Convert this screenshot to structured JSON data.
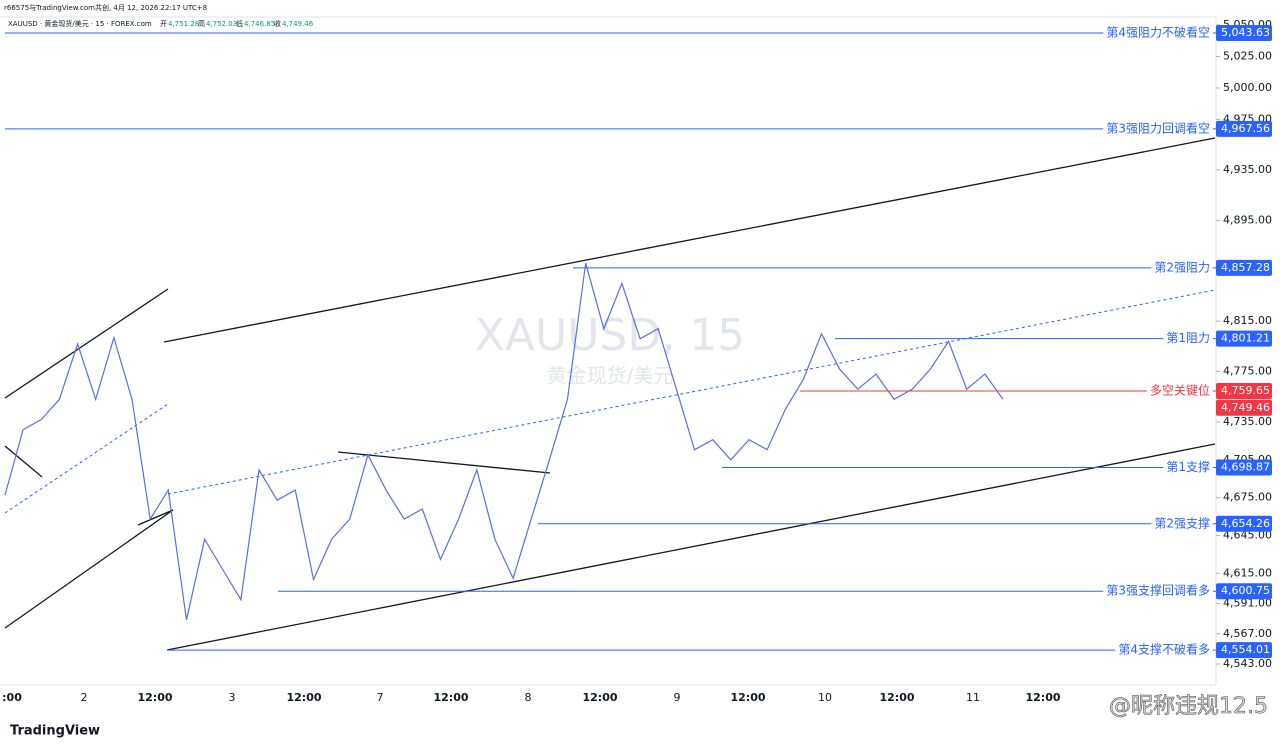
{
  "header": {
    "credit": "r66575与TradingView.com共创, 4月 12, 2026 22:17 UTC+8",
    "symbol": "XAUUSD · 黄金现货/美元 · 15 · FOREX.com",
    "ohlc": [
      {
        "label": "开",
        "value": "4,751.28"
      },
      {
        "label": "高",
        "value": "4,752.03"
      },
      {
        "label": "低",
        "value": "4,746.85"
      },
      {
        "label": "收",
        "value": "4,749.46"
      }
    ]
  },
  "watermark": {
    "symbol": "XAUUSD, 15",
    "name": "黄金现货/美元"
  },
  "price_axis": {
    "ylim": [
      4543,
      5050
    ],
    "yticks": [
      {
        "value": 5050,
        "label": "5,050.00"
      },
      {
        "value": 5025,
        "label": "5,025.00"
      },
      {
        "value": 5000,
        "label": "5,000.00"
      },
      {
        "value": 4975,
        "label": "4,975.00"
      },
      {
        "value": 4935,
        "label": "4,935.00"
      },
      {
        "value": 4895,
        "label": "4,895.00"
      },
      {
        "value": 4815,
        "label": "4,815.00"
      },
      {
        "value": 4775,
        "label": "4,775.00"
      },
      {
        "value": 4735,
        "label": "4,735.00"
      },
      {
        "value": 4705,
        "label": "4,705.00"
      },
      {
        "value": 4675,
        "label": "4,675.00"
      },
      {
        "value": 4645,
        "label": "4,645.00"
      },
      {
        "value": 4615,
        "label": "4,615.00"
      },
      {
        "value": 4591,
        "label": "4,591.00"
      },
      {
        "value": 4567,
        "label": "4,567.00"
      },
      {
        "value": 4543,
        "label": "4,543.00"
      }
    ]
  },
  "time_axis": {
    "labels": [
      ":00",
      "2",
      "12:00",
      "3",
      "12:00",
      "7",
      "12:00",
      "8",
      "12:00",
      "9",
      "12:00",
      "10",
      "12:00",
      "11",
      "12:00"
    ]
  },
  "levels": [
    {
      "name": "第4强阻力不破看空",
      "value": 5043.63,
      "value_label": "5,043.63",
      "color": "#2962ff"
    },
    {
      "name": "第3强阻力回调看空",
      "value": 4967.56,
      "value_label": "4,967.56",
      "color": "#2962ff"
    },
    {
      "name": "第2强阻力",
      "value": 4857.28,
      "value_label": "4,857.28",
      "color": "#2962ff"
    },
    {
      "name": "第1阻力",
      "value": 4801.21,
      "value_label": "4,801.21",
      "color": "#2962ff"
    },
    {
      "name": "多空关键位",
      "value": 4759.65,
      "value_label": "4,759.65",
      "color": "#f23645"
    },
    {
      "name": "第1支撑",
      "value": 4698.87,
      "value_label": "4,698.87",
      "color": "#2962ff"
    },
    {
      "name": "第2强支撑",
      "value": 4654.26,
      "value_label": "4,654.26",
      "color": "#2962ff"
    },
    {
      "name": "第3强支撑回调看多",
      "value": 4600.75,
      "value_label": "4,600.75",
      "color": "#2962ff"
    },
    {
      "name": "第4支撑不破看多",
      "value": 4554.01,
      "value_label": "4,554.01",
      "color": "#2962ff"
    }
  ],
  "last_price": {
    "value": 4749.46,
    "value_label": "4,749.46",
    "color": "#f23645"
  },
  "price_trace": {
    "color": "#5b6ee1",
    "values": [
      4677,
      4729,
      4737,
      4753,
      4797,
      4753,
      4802,
      4753,
      4658,
      4681,
      4578,
      4642,
      4618,
      4594,
      4697,
      4673,
      4681,
      4610,
      4642,
      4658,
      4709,
      4681,
      4658,
      4666,
      4626,
      4658,
      4697,
      4642,
      4611,
      4658,
      4705,
      4753,
      4861,
      4809,
      4845,
      4801,
      4809,
      4761,
      4713,
      4721,
      4705,
      4721,
      4713,
      4745,
      4769,
      4805,
      4777,
      4761,
      4773,
      4753,
      4761,
      4777,
      4799,
      4761,
      4773,
      4753
    ]
  },
  "footer": {
    "brand": "TradingView",
    "user_mark": "@昵称违规12.5"
  }
}
